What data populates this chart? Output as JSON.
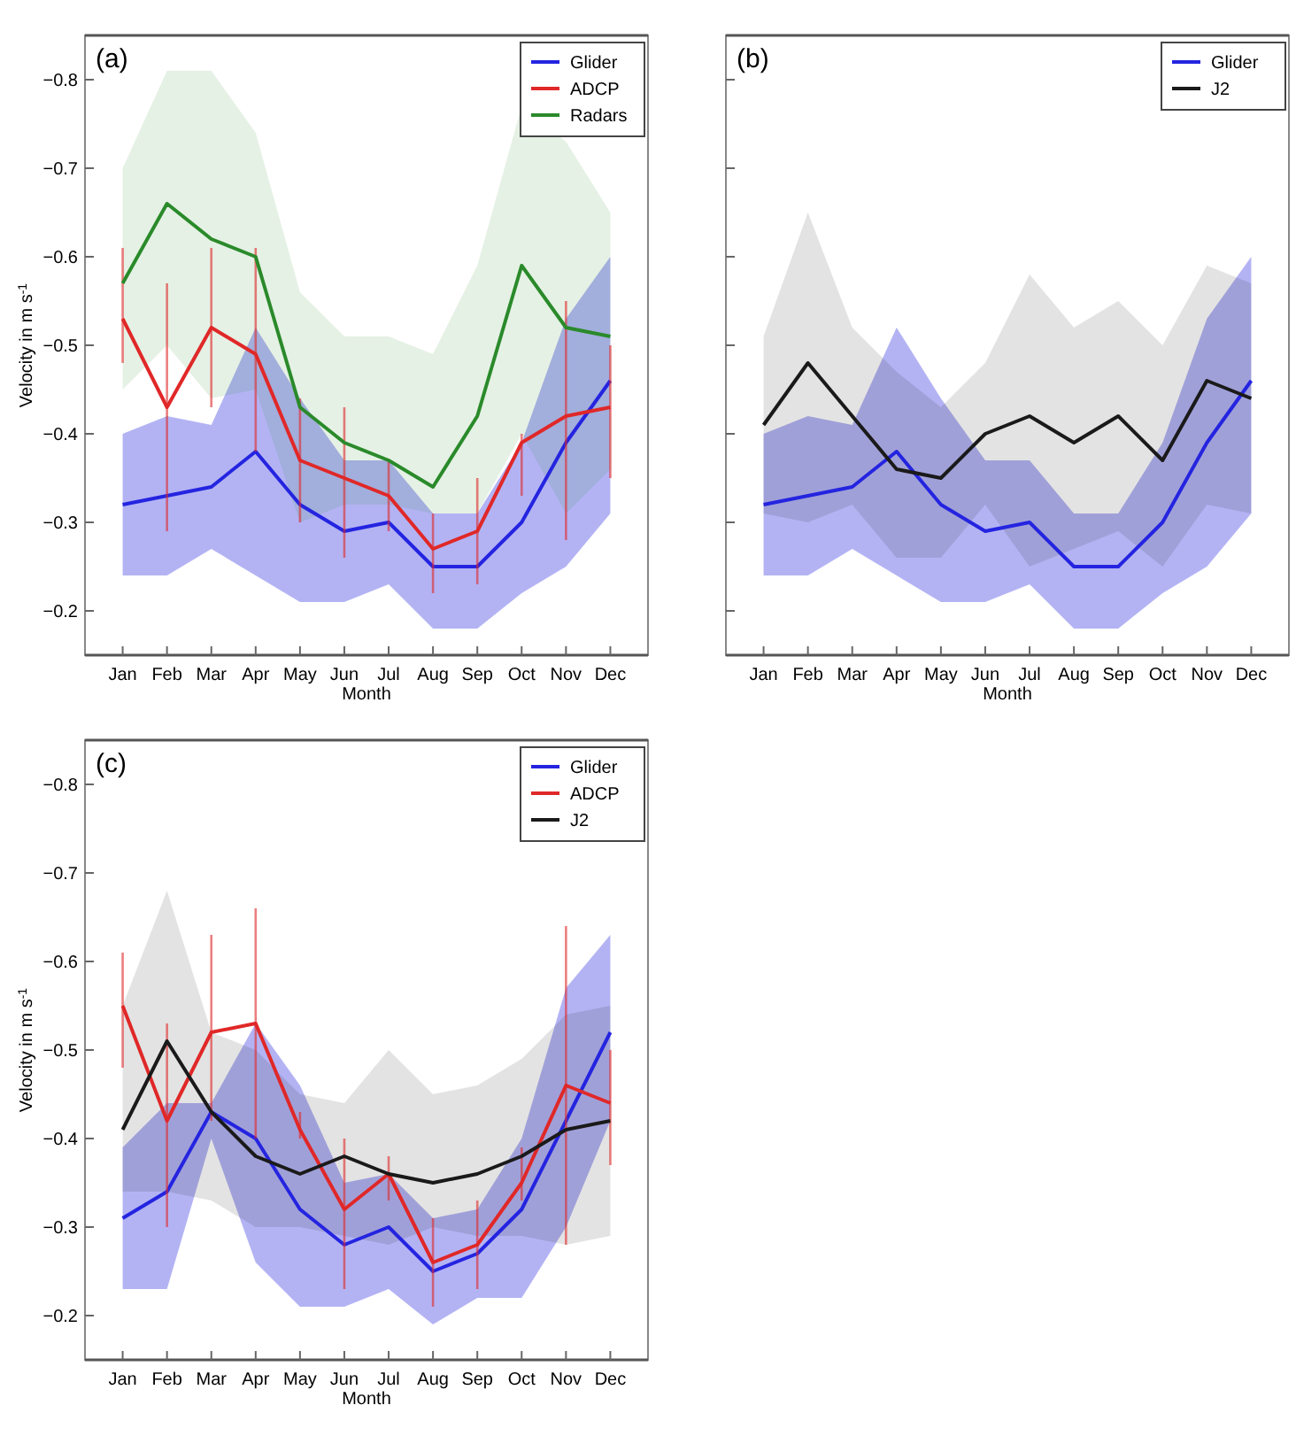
{
  "chart_data": [
    {
      "type": "line",
      "annotations": [
        "(a)"
      ],
      "xlabel": "Month",
      "ylabel": "Velocity in m s$^{-1}$",
      "categories": [
        "Jan",
        "Feb",
        "Mar",
        "Apr",
        "May",
        "Jun",
        "Jul",
        "Aug",
        "Sep",
        "Oct",
        "Nov",
        "Dec"
      ],
      "ylim": [
        -0.15,
        -0.85
      ],
      "yticks": [
        -0.2,
        -0.3,
        -0.4,
        -0.5,
        -0.6,
        -0.7,
        -0.8
      ],
      "grid": false,
      "legend": "top right",
      "marker": "none",
      "line_style": "solid",
      "series": [
        {
          "name": "Glider",
          "color": "#2424e0",
          "values": [
            -0.32,
            -0.33,
            -0.34,
            -0.38,
            -0.32,
            -0.29,
            -0.3,
            -0.25,
            -0.25,
            -0.3,
            -0.39,
            -0.46
          ],
          "lower": [
            -0.24,
            -0.24,
            -0.27,
            -0.24,
            -0.21,
            -0.21,
            -0.23,
            -0.18,
            -0.18,
            -0.22,
            -0.25,
            -0.31
          ],
          "upper": [
            -0.4,
            -0.42,
            -0.41,
            -0.52,
            -0.44,
            -0.37,
            -0.37,
            -0.31,
            -0.31,
            -0.39,
            -0.53,
            -0.6
          ]
        },
        {
          "name": "ADCP",
          "color": "#e02828",
          "values": [
            -0.53,
            -0.43,
            -0.52,
            -0.49,
            -0.37,
            -0.35,
            -0.33,
            -0.27,
            -0.29,
            -0.39,
            -0.42,
            -0.43
          ],
          "errors": [
            [
              -0.61,
              -0.48
            ],
            [
              -0.57,
              -0.29
            ],
            [
              -0.61,
              -0.43
            ],
            [
              -0.61,
              -0.38
            ],
            [
              -0.44,
              -0.3
            ],
            [
              -0.43,
              -0.26
            ],
            [
              -0.37,
              -0.29
            ],
            [
              -0.31,
              -0.22
            ],
            [
              -0.35,
              -0.23
            ],
            [
              -0.4,
              -0.33
            ],
            [
              -0.55,
              -0.28
            ],
            [
              -0.5,
              -0.35
            ]
          ]
        },
        {
          "name": "Radars",
          "color": "#2a8a2a",
          "values": [
            -0.57,
            -0.66,
            -0.62,
            -0.6,
            -0.43,
            -0.39,
            -0.37,
            -0.34,
            -0.42,
            -0.59,
            -0.52,
            -0.51
          ],
          "lower": [
            -0.45,
            -0.5,
            -0.44,
            -0.45,
            -0.3,
            -0.32,
            -0.32,
            -0.31,
            -0.31,
            -0.4,
            -0.31,
            -0.36
          ],
          "upper": [
            -0.7,
            -0.81,
            -0.81,
            -0.74,
            -0.56,
            -0.51,
            -0.51,
            -0.49,
            -0.59,
            -0.77,
            -0.73,
            -0.65
          ]
        }
      ]
    },
    {
      "type": "line",
      "annotations": [
        "(b)"
      ],
      "xlabel": "Month",
      "categories": [
        "Jan",
        "Feb",
        "Mar",
        "Apr",
        "May",
        "Jun",
        "Jul",
        "Aug",
        "Sep",
        "Oct",
        "Nov",
        "Dec"
      ],
      "ylim": [
        -0.15,
        -0.85
      ],
      "yticks": [
        -0.2,
        -0.3,
        -0.4,
        -0.5,
        -0.6,
        -0.7,
        -0.8
      ],
      "tick_labels": "x",
      "grid": false,
      "legend": "top right",
      "marker": "none",
      "line_style": "solid",
      "series": [
        {
          "name": "Glider",
          "color": "#2424e0",
          "values": [
            -0.32,
            -0.33,
            -0.34,
            -0.38,
            -0.32,
            -0.29,
            -0.3,
            -0.25,
            -0.25,
            -0.3,
            -0.39,
            -0.46
          ],
          "lower": [
            -0.24,
            -0.24,
            -0.27,
            -0.24,
            -0.21,
            -0.21,
            -0.23,
            -0.18,
            -0.18,
            -0.22,
            -0.25,
            -0.31
          ],
          "upper": [
            -0.4,
            -0.42,
            -0.41,
            -0.52,
            -0.44,
            -0.37,
            -0.37,
            -0.31,
            -0.31,
            -0.39,
            -0.53,
            -0.6
          ]
        },
        {
          "name": "J2",
          "color": "#1a1a1a",
          "values": [
            -0.41,
            -0.48,
            -0.42,
            -0.36,
            -0.35,
            -0.4,
            -0.42,
            -0.39,
            -0.42,
            -0.37,
            -0.46,
            -0.44
          ],
          "lower": [
            -0.31,
            -0.3,
            -0.32,
            -0.26,
            -0.26,
            -0.32,
            -0.25,
            -0.27,
            -0.29,
            -0.25,
            -0.32,
            -0.31
          ],
          "upper": [
            -0.51,
            -0.65,
            -0.52,
            -0.47,
            -0.43,
            -0.48,
            -0.58,
            -0.52,
            -0.55,
            -0.5,
            -0.59,
            -0.57
          ]
        }
      ]
    },
    {
      "type": "line",
      "annotations": [
        "(c)"
      ],
      "xlabel": "Month",
      "ylabel": "Velocity in m s$^{-1}$",
      "categories": [
        "Jan",
        "Feb",
        "Mar",
        "Apr",
        "May",
        "Jun",
        "Jul",
        "Aug",
        "Sep",
        "Oct",
        "Nov",
        "Dec"
      ],
      "ylim": [
        -0.15,
        -0.85
      ],
      "yticks": [
        -0.2,
        -0.3,
        -0.4,
        -0.5,
        -0.6,
        -0.7,
        -0.8
      ],
      "grid": false,
      "legend": "top right",
      "marker": "none",
      "line_style": "solid",
      "series": [
        {
          "name": "Glider",
          "color": "#2424e0",
          "values": [
            -0.31,
            -0.34,
            -0.43,
            -0.4,
            -0.32,
            -0.28,
            -0.3,
            -0.25,
            -0.27,
            -0.32,
            -0.42,
            -0.52
          ],
          "lower": [
            -0.23,
            -0.23,
            -0.4,
            -0.26,
            -0.21,
            -0.21,
            -0.23,
            -0.19,
            -0.22,
            -0.22,
            -0.3,
            -0.42
          ],
          "upper": [
            -0.39,
            -0.44,
            -0.44,
            -0.53,
            -0.46,
            -0.35,
            -0.36,
            -0.31,
            -0.32,
            -0.4,
            -0.57,
            -0.63
          ]
        },
        {
          "name": "ADCP",
          "color": "#e02828",
          "values": [
            -0.55,
            -0.42,
            -0.52,
            -0.53,
            -0.41,
            -0.32,
            -0.36,
            -0.26,
            -0.28,
            -0.35,
            -0.46,
            -0.44
          ],
          "errors": [
            [
              -0.61,
              -0.48
            ],
            [
              -0.53,
              -0.3
            ],
            [
              -0.63,
              -0.42
            ],
            [
              -0.66,
              -0.4
            ],
            [
              -0.43,
              -0.4
            ],
            [
              -0.4,
              -0.23
            ],
            [
              -0.38,
              -0.33
            ],
            [
              -0.31,
              -0.21
            ],
            [
              -0.33,
              -0.23
            ],
            [
              -0.39,
              -0.33
            ],
            [
              -0.64,
              -0.28
            ],
            [
              -0.5,
              -0.37
            ]
          ]
        },
        {
          "name": "J2",
          "color": "#1a1a1a",
          "values": [
            -0.41,
            -0.51,
            -0.43,
            -0.38,
            -0.36,
            -0.38,
            -0.36,
            -0.35,
            -0.36,
            -0.38,
            -0.41,
            -0.42
          ],
          "lower": [
            -0.34,
            -0.34,
            -0.33,
            -0.3,
            -0.3,
            -0.29,
            -0.28,
            -0.3,
            -0.29,
            -0.29,
            -0.28,
            -0.29
          ],
          "upper": [
            -0.55,
            -0.68,
            -0.52,
            -0.5,
            -0.45,
            -0.44,
            -0.5,
            -0.45,
            -0.46,
            -0.49,
            -0.54,
            -0.55
          ]
        }
      ]
    }
  ]
}
